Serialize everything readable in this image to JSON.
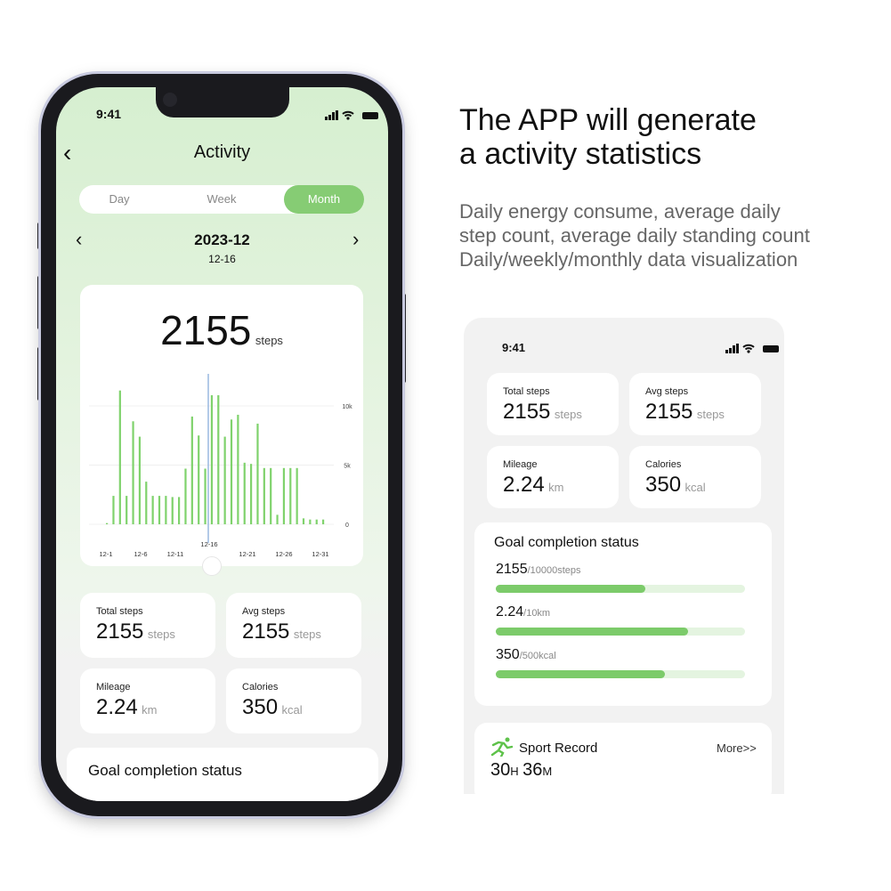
{
  "headline": {
    "line1": "The APP will generate",
    "line2": "a activity statistics"
  },
  "description": [
    "Daily energy consume, average daily",
    "step count, average daily standing count",
    "Daily/weekly/monthly data visualization"
  ],
  "colors": {
    "accent": "#86cc74",
    "bar": "#7fd26c",
    "selected_line": "#9ab8e0",
    "track": "#e4f4e0"
  },
  "left_phone": {
    "status": {
      "time": "9:41",
      "icons": [
        "signal-icon",
        "wifi-icon",
        "battery-icon"
      ]
    },
    "title": "Activity",
    "back_icon": "chevron-left-icon",
    "tabs": [
      {
        "label": "Day",
        "selected": false
      },
      {
        "label": "Week",
        "selected": false
      },
      {
        "label": "Month",
        "selected": true
      }
    ],
    "period": "2023-12",
    "selected_date": "12-16",
    "summary": {
      "value": "2155",
      "unit": "steps"
    },
    "stats": [
      {
        "label": "Total steps",
        "value": "2155",
        "unit": "steps"
      },
      {
        "label": "Avg steps",
        "value": "2155",
        "unit": "steps"
      },
      {
        "label": "Mileage",
        "value": "2.24",
        "unit": "km"
      },
      {
        "label": "Calories",
        "value": "350",
        "unit": "kcal"
      }
    ],
    "goal_title": "Goal completion status"
  },
  "chart_data": {
    "type": "bar",
    "x_tick_labels": [
      "12-1",
      "12-6",
      "12-11",
      "12-16",
      "12-21",
      "12-26",
      "12-31"
    ],
    "y_tick_labels": [
      "10k",
      "5k",
      "0"
    ],
    "ylim": [
      0,
      12000
    ],
    "selected": "12-16",
    "values": [
      100,
      2400,
      11300,
      2400,
      8700,
      7400,
      3600,
      2400,
      2400,
      2400,
      2300,
      2300,
      4700,
      9100,
      7500,
      4700,
      10900,
      10900,
      7400,
      8850,
      9250,
      5200,
      5100,
      8500,
      4750,
      4750,
      800,
      4750,
      4750,
      4750,
      500,
      400,
      400,
      400
    ],
    "grid": true
  },
  "right_phone": {
    "status": {
      "time": "9:41"
    },
    "stats": [
      {
        "label": "Total steps",
        "value": "2155",
        "unit": "steps"
      },
      {
        "label": "Avg steps",
        "value": "2155",
        "unit": "steps"
      },
      {
        "label": "Mileage",
        "value": "2.24",
        "unit": "km"
      },
      {
        "label": "Calories",
        "value": "350",
        "unit": "kcal"
      }
    ],
    "goal_title": "Goal completion status",
    "goals": [
      {
        "value": "2155",
        "target": "/10000steps",
        "percent": 60
      },
      {
        "value": "2.24",
        "target": "/10km",
        "percent": 77
      },
      {
        "value": "350",
        "target": "/500kcal",
        "percent": 68
      }
    ],
    "sport": {
      "title": "Sport Record",
      "more": "More>>",
      "hours": "30",
      "h": "H",
      "minutes": "36",
      "m": "M",
      "icon": "running-person-icon"
    }
  }
}
